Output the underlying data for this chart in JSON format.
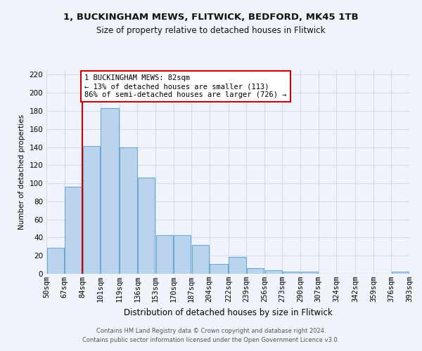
{
  "title1": "1, BUCKINGHAM MEWS, FLITWICK, BEDFORD, MK45 1TB",
  "title2": "Size of property relative to detached houses in Flitwick",
  "xlabel": "Distribution of detached houses by size in Flitwick",
  "ylabel": "Number of detached properties",
  "bin_labels": [
    "50sqm",
    "67sqm",
    "84sqm",
    "101sqm",
    "119sqm",
    "136sqm",
    "153sqm",
    "170sqm",
    "187sqm",
    "204sqm",
    "222sqm",
    "239sqm",
    "256sqm",
    "273sqm",
    "290sqm",
    "307sqm",
    "324sqm",
    "342sqm",
    "359sqm",
    "376sqm",
    "393sqm"
  ],
  "bin_edges": [
    50,
    67,
    84,
    101,
    119,
    136,
    153,
    170,
    187,
    204,
    222,
    239,
    256,
    273,
    290,
    307,
    324,
    342,
    359,
    376,
    393
  ],
  "bar_heights": [
    29,
    96,
    141,
    183,
    140,
    106,
    43,
    43,
    32,
    11,
    19,
    6,
    4,
    2,
    2,
    0,
    0,
    0,
    0,
    2
  ],
  "bar_color": "#bad4ed",
  "bar_edge_color": "#6aaad4",
  "grid_color": "#d0dcea",
  "vline_x": 84,
  "vline_color": "#cc0000",
  "annotation_text": "1 BUCKINGHAM MEWS: 82sqm\n← 13% of detached houses are smaller (113)\n86% of semi-detached houses are larger (726) →",
  "annotation_box_color": "#ffffff",
  "annotation_box_edge": "#cc0000",
  "ylim": [
    0,
    225
  ],
  "yticks": [
    0,
    20,
    40,
    60,
    80,
    100,
    120,
    140,
    160,
    180,
    200,
    220
  ],
  "footer1": "Contains HM Land Registry data © Crown copyright and database right 2024.",
  "footer2": "Contains public sector information licensed under the Open Government Licence v3.0.",
  "bg_color": "#f0f4fa"
}
